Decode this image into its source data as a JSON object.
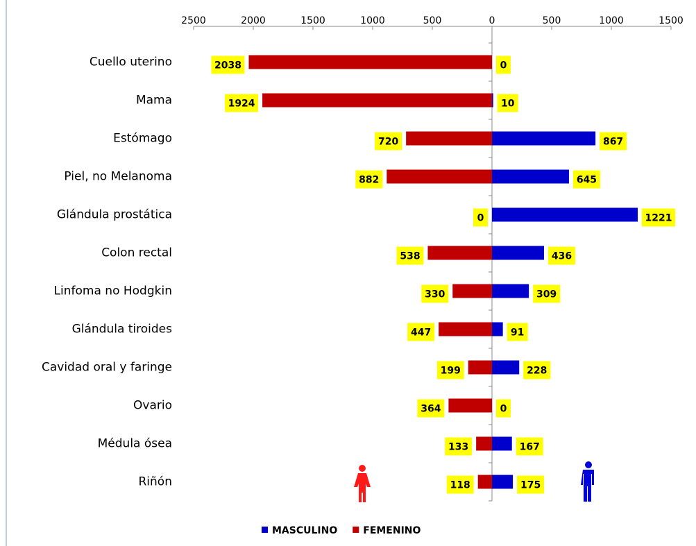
{
  "chart_data": {
    "type": "butterfly",
    "categories": [
      "Cuello uterino",
      "Mama",
      "Estómago",
      "Piel, no Melanoma",
      "Glándula prostática",
      "Colon rectal",
      "Linfoma no Hodgkin",
      "Glándula tiroides",
      "Cavidad oral y faringe",
      "Ovario",
      "Médula ósea",
      "Riñón"
    ],
    "series": [
      {
        "name": "MASCULINO",
        "color": "#0000cc",
        "direction": "right",
        "values": [
          0,
          10,
          867,
          645,
          1221,
          436,
          309,
          91,
          228,
          0,
          167,
          175
        ]
      },
      {
        "name": "FEMENINO",
        "color": "#c00000",
        "direction": "left",
        "values": [
          2038,
          1924,
          720,
          882,
          0,
          538,
          330,
          447,
          199,
          364,
          133,
          118
        ]
      }
    ],
    "xlim": [
      -2500,
      1500
    ],
    "xticks": [
      {
        "value": -2500,
        "label": "2500"
      },
      {
        "value": -2000,
        "label": "2000"
      },
      {
        "value": -1500,
        "label": "1500"
      },
      {
        "value": -1000,
        "label": "1000"
      },
      {
        "value": -500,
        "label": "500"
      },
      0,
      500,
      1000,
      1500
    ],
    "label_color": "#ffff00",
    "legend": "bottom"
  }
}
